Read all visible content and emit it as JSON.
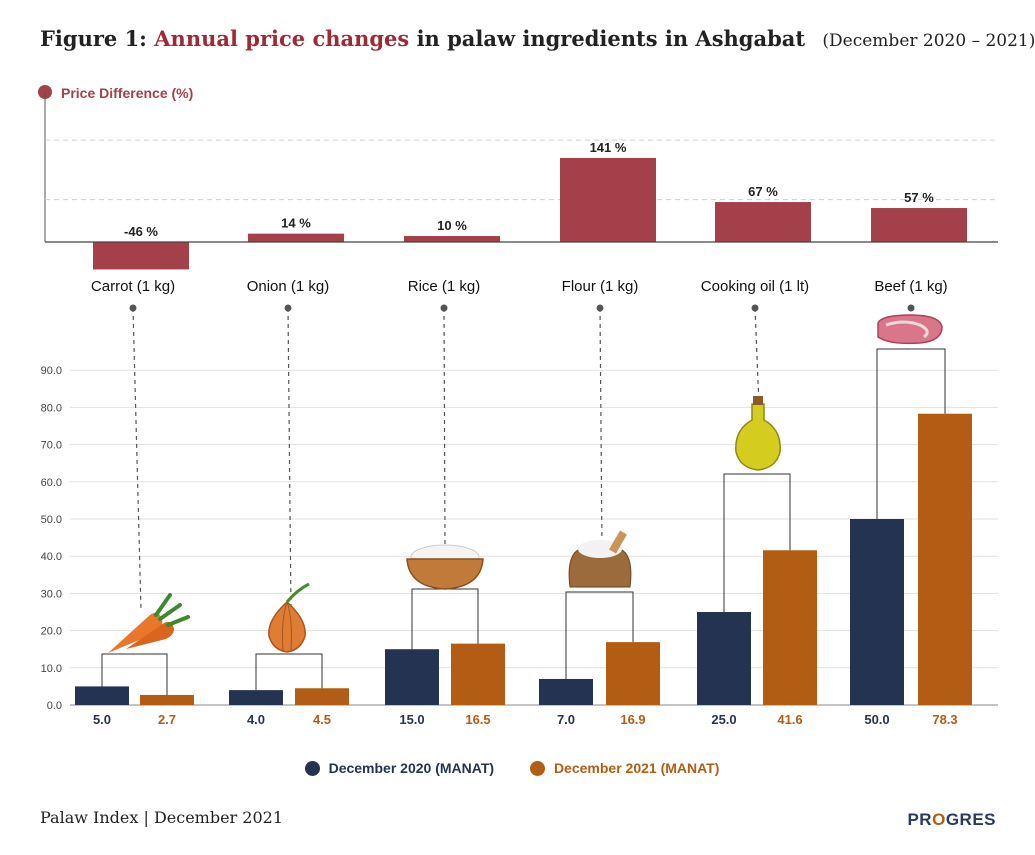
{
  "header": {
    "figure_label": "Figure 1:",
    "title_accent": "Annual price changes",
    "title_rest": "in palaw ingredients in Ashgabat",
    "date_range": "(December 2020 – 2021)"
  },
  "chart_data": [
    {
      "type": "bar",
      "title": "Price Difference (%)",
      "categories": [
        "Carrot (1 kg)",
        "Onion (1 kg)",
        "Rice (1 kg)",
        "Flour (1 kg)",
        "Cooking oil (1 lt)",
        "Beef (1 kg)"
      ],
      "values": [
        -46,
        14,
        10,
        141,
        67,
        57
      ],
      "data_labels": [
        "-46 %",
        "14 %",
        "10 %",
        "141 %",
        "67 %",
        "57 %"
      ],
      "color": "#a3404a",
      "grid": "dashed"
    },
    {
      "type": "bar",
      "categories": [
        "Carrot (1 kg)",
        "Onion (1 kg)",
        "Rice (1 kg)",
        "Flour (1 kg)",
        "Cooking oil (1 lt)",
        "Beef (1 kg)"
      ],
      "series": [
        {
          "name": "December 2020 (MANAT)",
          "color": "#253352",
          "values": [
            5.0,
            4.0,
            15.0,
            7.0,
            25.0,
            50.0
          ],
          "labels": [
            "5.0",
            "4.0",
            "15.0",
            "7.0",
            "25.0",
            "50.0"
          ]
        },
        {
          "name": "December 2021 (MANAT)",
          "color": "#b35d14",
          "values": [
            2.7,
            4.5,
            16.5,
            16.9,
            41.6,
            78.3
          ],
          "labels": [
            "2.7",
            "4.5",
            "16.5",
            "16.9",
            "41.6",
            "78.3"
          ]
        }
      ],
      "ylim": [
        0,
        90
      ],
      "yticks": [
        "0.0",
        "10.0",
        "20.0",
        "30.0",
        "40.0",
        "50.0",
        "60.0",
        "70.0",
        "80.0",
        "90.0"
      ],
      "grid": true,
      "legend_position": "bottom"
    }
  ],
  "icons": [
    "carrot-icon",
    "onion-icon",
    "rice-bowl-icon",
    "flour-sack-icon",
    "oil-bottle-icon",
    "beef-steak-icon"
  ],
  "footer": {
    "text": "Palaw Index | December 2021"
  },
  "logo": {
    "pre": "PR",
    "o": "O",
    "post": "GRES"
  }
}
